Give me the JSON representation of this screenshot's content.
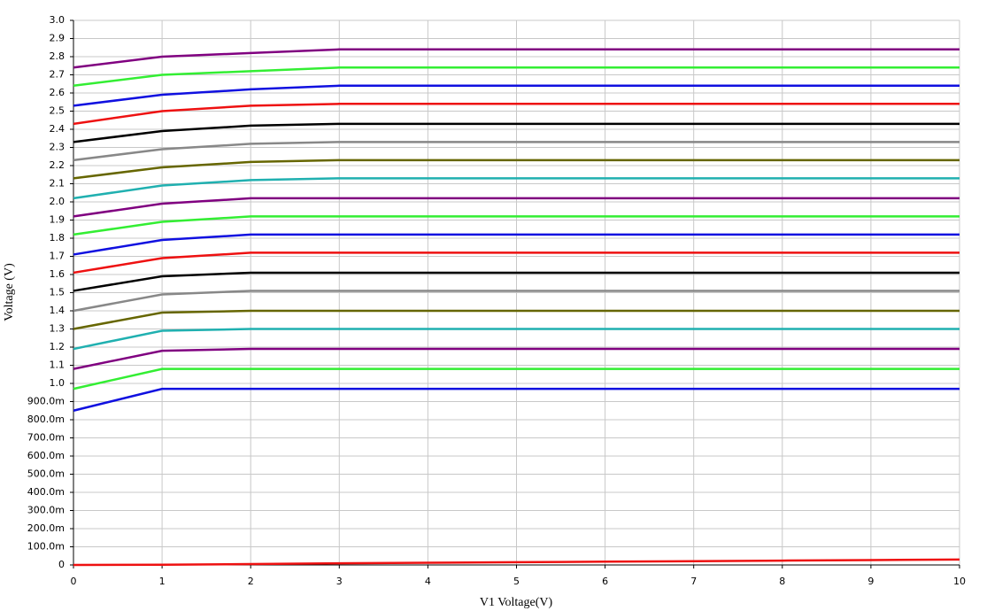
{
  "chart_data": {
    "type": "line",
    "x_label": "V1 Voltage(V)",
    "y_label": "Voltage (V)",
    "x": [
      0,
      1,
      2,
      3,
      4,
      5,
      6,
      7,
      8,
      9,
      10
    ],
    "xlim": [
      0,
      10
    ],
    "xticks": [
      0,
      1,
      2,
      3,
      4,
      5,
      6,
      7,
      8,
      9,
      10
    ],
    "ylim": [
      0,
      3
    ],
    "yticks": [
      0,
      {
        "value": 0.1,
        "label": "100.0m"
      },
      {
        "value": 0.2,
        "label": "200.0m"
      },
      {
        "value": 0.3,
        "label": "300.0m"
      },
      {
        "value": 0.4,
        "label": "400.0m"
      },
      {
        "value": 0.5,
        "label": "500.0m"
      },
      {
        "value": 0.6,
        "label": "600.0m"
      },
      {
        "value": 0.7,
        "label": "700.0m"
      },
      {
        "value": 0.8,
        "label": "800.0m"
      },
      {
        "value": 0.9,
        "label": "900.0m"
      },
      {
        "value": 1,
        "label": "1.0"
      },
      1.1,
      1.2,
      1.3,
      1.4,
      1.5,
      1.6,
      1.7,
      1.8,
      1.9,
      {
        "value": 2,
        "label": "2.0"
      },
      2.1,
      2.2,
      2.3,
      2.4,
      2.5,
      2.6,
      2.7,
      2.8,
      2.9,
      {
        "value": 3,
        "label": "3.0"
      }
    ],
    "grid": true,
    "series": [
      {
        "color": "#ee1111",
        "values": [
          0,
          0.001,
          0.005,
          0.009,
          0.012,
          0.015,
          0.018,
          0.021,
          0.024,
          0.027,
          0.03
        ]
      },
      {
        "color": "#1010e0",
        "values": [
          0.85,
          0.97,
          0.97,
          0.97,
          0.97,
          0.97,
          0.97,
          0.97,
          0.97,
          0.97,
          0.97
        ]
      },
      {
        "color": "#33ee33",
        "values": [
          0.97,
          1.08,
          1.08,
          1.08,
          1.08,
          1.08,
          1.08,
          1.08,
          1.08,
          1.08,
          1.08
        ]
      },
      {
        "color": "#800080",
        "values": [
          1.08,
          1.18,
          1.19,
          1.19,
          1.19,
          1.19,
          1.19,
          1.19,
          1.19,
          1.19,
          1.19
        ]
      },
      {
        "color": "#20b0b0",
        "values": [
          1.19,
          1.29,
          1.3,
          1.3,
          1.3,
          1.3,
          1.3,
          1.3,
          1.3,
          1.3,
          1.3
        ]
      },
      {
        "color": "#666600",
        "values": [
          1.3,
          1.39,
          1.4,
          1.4,
          1.4,
          1.4,
          1.4,
          1.4,
          1.4,
          1.4,
          1.4
        ]
      },
      {
        "color": "#888888",
        "values": [
          1.4,
          1.49,
          1.51,
          1.51,
          1.51,
          1.51,
          1.51,
          1.51,
          1.51,
          1.51,
          1.51
        ]
      },
      {
        "color": "#000000",
        "values": [
          1.51,
          1.59,
          1.61,
          1.61,
          1.61,
          1.61,
          1.61,
          1.61,
          1.61,
          1.61,
          1.61
        ]
      },
      {
        "color": "#ee1111",
        "values": [
          1.61,
          1.69,
          1.72,
          1.72,
          1.72,
          1.72,
          1.72,
          1.72,
          1.72,
          1.72,
          1.72
        ]
      },
      {
        "color": "#1010e0",
        "values": [
          1.71,
          1.79,
          1.82,
          1.82,
          1.82,
          1.82,
          1.82,
          1.82,
          1.82,
          1.82,
          1.82
        ]
      },
      {
        "color": "#33ee33",
        "values": [
          1.82,
          1.89,
          1.92,
          1.92,
          1.92,
          1.92,
          1.92,
          1.92,
          1.92,
          1.92,
          1.92
        ]
      },
      {
        "color": "#800080",
        "values": [
          1.92,
          1.99,
          2.02,
          2.02,
          2.02,
          2.02,
          2.02,
          2.02,
          2.02,
          2.02,
          2.02
        ]
      },
      {
        "color": "#20b0b0",
        "values": [
          2.02,
          2.09,
          2.12,
          2.13,
          2.13,
          2.13,
          2.13,
          2.13,
          2.13,
          2.13,
          2.13
        ]
      },
      {
        "color": "#666600",
        "values": [
          2.13,
          2.19,
          2.22,
          2.23,
          2.23,
          2.23,
          2.23,
          2.23,
          2.23,
          2.23,
          2.23
        ]
      },
      {
        "color": "#888888",
        "values": [
          2.23,
          2.29,
          2.32,
          2.33,
          2.33,
          2.33,
          2.33,
          2.33,
          2.33,
          2.33,
          2.33
        ]
      },
      {
        "color": "#000000",
        "values": [
          2.33,
          2.39,
          2.42,
          2.43,
          2.43,
          2.43,
          2.43,
          2.43,
          2.43,
          2.43,
          2.43
        ]
      },
      {
        "color": "#ee1111",
        "values": [
          2.43,
          2.5,
          2.53,
          2.54,
          2.54,
          2.54,
          2.54,
          2.54,
          2.54,
          2.54,
          2.54
        ]
      },
      {
        "color": "#1010e0",
        "values": [
          2.53,
          2.59,
          2.62,
          2.64,
          2.64,
          2.64,
          2.64,
          2.64,
          2.64,
          2.64,
          2.64
        ]
      },
      {
        "color": "#33ee33",
        "values": [
          2.64,
          2.7,
          2.72,
          2.74,
          2.74,
          2.74,
          2.74,
          2.74,
          2.74,
          2.74,
          2.74
        ]
      },
      {
        "color": "#800080",
        "values": [
          2.74,
          2.8,
          2.82,
          2.84,
          2.84,
          2.84,
          2.84,
          2.84,
          2.84,
          2.84,
          2.84
        ]
      }
    ]
  }
}
